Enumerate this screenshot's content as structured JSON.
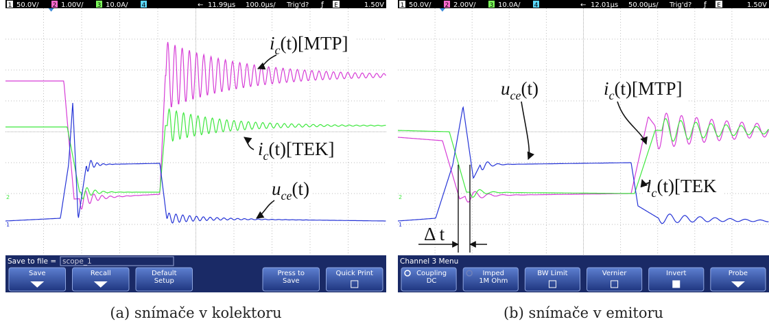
{
  "panels": [
    {
      "header": {
        "channels": [
          {
            "number": "1",
            "scale": "50.0V/"
          },
          {
            "number": "2",
            "scale": "1.00V/"
          },
          {
            "number": "3",
            "scale": "10.0A/"
          },
          {
            "number": "4"
          }
        ],
        "delay": "11.99µs",
        "timebase": "100.0µs/",
        "trigger": "Trig'd?",
        "slope": "ƒ",
        "source": "E",
        "level": "1.50V"
      },
      "annotations": [
        {
          "main": "i",
          "sub": "c",
          "rest": "(t)[MTP]"
        },
        {
          "main": "i",
          "sub": "c",
          "rest": "(t)[TEK]"
        },
        {
          "main": "u",
          "sub": "ce",
          "rest": "(t)"
        }
      ],
      "status": {
        "label": "Save to file =",
        "input": "scope_1"
      },
      "buttons": [
        {
          "lines": [
            "Save"
          ],
          "icon": "arrow"
        },
        {
          "lines": [
            "Recall"
          ],
          "icon": "arrow"
        },
        {
          "lines": [
            "Default",
            "Setup"
          ]
        },
        null,
        {
          "lines": [
            "Press to",
            "Save"
          ]
        },
        {
          "lines": [
            "Quick Print"
          ],
          "icon": "square"
        }
      ],
      "caption": "(a) snímače v kolektoru"
    },
    {
      "header": {
        "channels": [
          {
            "number": "1",
            "scale": "50.0V/"
          },
          {
            "number": "2",
            "scale": "2.00V/"
          },
          {
            "number": "3",
            "scale": "10.0A/"
          },
          {
            "number": "4"
          }
        ],
        "delay": "12.01µs",
        "timebase": "50.00µs/",
        "trigger": "Trig'd?",
        "slope": "ƒ",
        "source": "E",
        "level": "1.50V"
      },
      "annotations": [
        {
          "main": "u",
          "sub": "ce",
          "rest": "(t)"
        },
        {
          "main": "i",
          "sub": "c",
          "rest": "(t)[MTP]"
        },
        {
          "main": "i",
          "sub": "c",
          "rest": "(t)[TEK"
        }
      ],
      "delta": "Δ t",
      "status": {
        "label": "Channel 3 Menu"
      },
      "buttons": [
        {
          "lines": [
            "Coupling",
            "DC"
          ],
          "icon": "cycle"
        },
        {
          "lines": [
            "Imped",
            "1M Ohm"
          ],
          "icon": "cycle-dim"
        },
        {
          "lines": [
            "BW Limit"
          ],
          "icon": "square"
        },
        {
          "lines": [
            "Vernier"
          ],
          "icon": "square"
        },
        {
          "lines": [
            "Invert"
          ],
          "icon": "square-filled"
        },
        {
          "lines": [
            "Probe"
          ],
          "icon": "arrow"
        }
      ],
      "caption": "(b) snímače v emitoru"
    }
  ]
}
